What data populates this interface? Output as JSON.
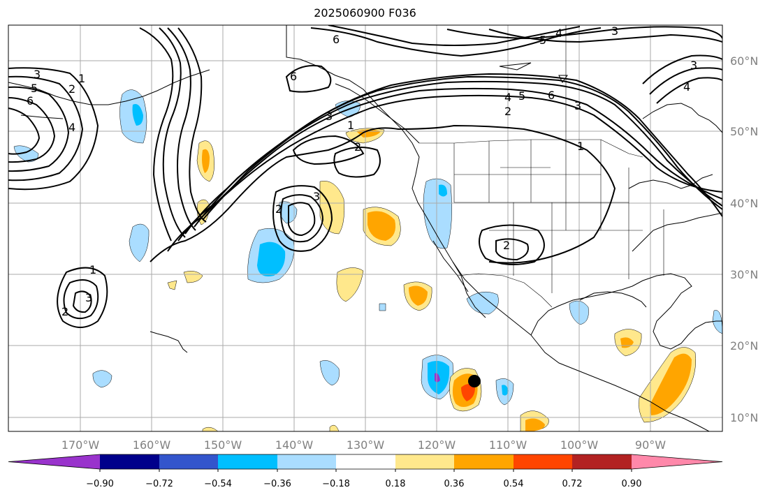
{
  "title": "2025060900 F036",
  "lat_labels": [
    "60°N",
    "50°N",
    "40°N",
    "30°N",
    "20°N",
    "10°N"
  ],
  "lon_labels": [
    "170°W",
    "160°W",
    "150°W",
    "140°W",
    "130°W",
    "120°W",
    "110°W",
    "100°W",
    "90°W"
  ],
  "colorbar": {
    "ticks": [
      "−0.90",
      "−0.72",
      "−0.54",
      "−0.36",
      "−0.18",
      "0.18",
      "0.36",
      "0.54",
      "0.72",
      "0.90"
    ],
    "colors": [
      "#9933cc",
      "#00008b",
      "#3355cc",
      "#00bfff",
      "#aaddff",
      "#ffffff",
      "#ffe88c",
      "#ffa500",
      "#ff4500",
      "#b22222",
      "#ff88aa"
    ]
  },
  "contour_labels": [
    "1",
    "2",
    "3",
    "4",
    "5",
    "6"
  ],
  "marker": "storm-position-dot"
}
